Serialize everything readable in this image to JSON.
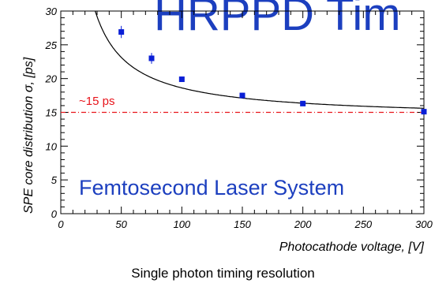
{
  "banner_text": "HRPPD Tim",
  "caption": "Single photon timing resolution",
  "annotation": "~15 ps",
  "laser_label": "Femtosecond Laser System",
  "colors": {
    "points": "#0a1fd6",
    "reference_line": "#e8141b",
    "fit": "#000000",
    "banner": "#1c3fbf"
  },
  "chart_data": {
    "type": "scatter",
    "xlabel": "Photocathode voltage, [V]",
    "ylabel": "SPE core distribution σ, [ps]",
    "xlim": [
      0,
      300
    ],
    "ylim": [
      0,
      30
    ],
    "xticks": [
      0,
      50,
      100,
      150,
      200,
      250,
      300
    ],
    "yticks": [
      0,
      5,
      10,
      15,
      20,
      25,
      30
    ],
    "series": [
      {
        "x": [
          50,
          75,
          100,
          150,
          200,
          300
        ],
        "y": [
          26.9,
          23.0,
          19.9,
          17.5,
          16.3,
          15.1
        ],
        "yerr": [
          0.9,
          0.8,
          0.4,
          0.4,
          0.3,
          0.3
        ]
      }
    ],
    "fit": {
      "model": "a + b/x",
      "a": 14.1,
      "b": 452
    },
    "reference_line": {
      "y": 15
    },
    "grid": false
  }
}
